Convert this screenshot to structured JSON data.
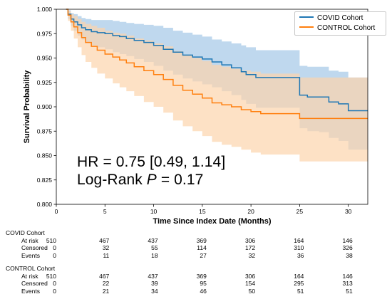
{
  "chart_data": {
    "type": "line",
    "title": "",
    "xlabel": "Time Since Index Date (Months)",
    "ylabel": "Survival Probability",
    "xlim": [
      0,
      32
    ],
    "ylim": [
      0.8,
      1.0
    ],
    "xticks": [
      0,
      5,
      10,
      15,
      20,
      25,
      30
    ],
    "xtick_labels": [
      "0",
      "5",
      "10",
      "15",
      "20",
      "25",
      "30"
    ],
    "yticks": [
      0.8,
      0.825,
      0.85,
      0.875,
      0.9,
      0.925,
      0.95,
      0.975,
      1.0
    ],
    "ytick_labels": [
      "0.800",
      "0.825",
      "0.850",
      "0.875",
      "0.900",
      "0.925",
      "0.950",
      "0.975",
      "1.000"
    ],
    "grid": false,
    "legend_position": "top-right",
    "series": [
      {
        "name": "COVID Cohort",
        "color": "#1f77b4",
        "band_color": "#a9cbe8",
        "x": [
          1.0,
          1.2,
          1.5,
          1.8,
          2.2,
          2.6,
          3.0,
          3.6,
          4.2,
          5.0,
          5.8,
          6.5,
          7.2,
          8.0,
          9.0,
          10.0,
          11.0,
          12.0,
          13.0,
          14.0,
          15.0,
          16.0,
          17.0,
          18.0,
          19.0,
          19.5,
          20.5,
          22.0,
          24.0,
          24.8,
          25.0,
          25.8,
          27.0,
          28.0,
          29.0,
          30.0,
          32.0
        ],
        "y": [
          1.0,
          0.995,
          0.99,
          0.987,
          0.984,
          0.981,
          0.979,
          0.977,
          0.976,
          0.975,
          0.973,
          0.972,
          0.97,
          0.968,
          0.966,
          0.963,
          0.959,
          0.956,
          0.953,
          0.951,
          0.949,
          0.946,
          0.943,
          0.94,
          0.936,
          0.933,
          0.93,
          0.93,
          0.93,
          0.93,
          0.912,
          0.91,
          0.91,
          0.905,
          0.903,
          0.896,
          0.896
        ],
        "ci_lower": [
          1.0,
          0.99,
          0.983,
          0.978,
          0.973,
          0.969,
          0.966,
          0.963,
          0.961,
          0.959,
          0.956,
          0.954,
          0.952,
          0.949,
          0.946,
          0.942,
          0.937,
          0.933,
          0.929,
          0.926,
          0.923,
          0.92,
          0.916,
          0.912,
          0.907,
          0.903,
          0.899,
          0.899,
          0.899,
          0.899,
          0.878,
          0.875,
          0.874,
          0.868,
          0.865,
          0.856,
          0.856
        ],
        "ci_upper": [
          1.0,
          0.999,
          0.996,
          0.995,
          0.993,
          0.991,
          0.99,
          0.989,
          0.989,
          0.989,
          0.988,
          0.987,
          0.986,
          0.985,
          0.984,
          0.983,
          0.981,
          0.978,
          0.976,
          0.974,
          0.972,
          0.969,
          0.967,
          0.965,
          0.963,
          0.961,
          0.958,
          0.958,
          0.958,
          0.958,
          0.942,
          0.941,
          0.941,
          0.937,
          0.936,
          0.93,
          0.93
        ]
      },
      {
        "name": "CONTROL Cohort",
        "color": "#ff7f0e",
        "band_color": "#fcd4ad",
        "x": [
          1.0,
          1.2,
          1.5,
          1.8,
          2.2,
          2.6,
          3.0,
          3.6,
          4.2,
          5.0,
          5.8,
          6.5,
          7.2,
          8.0,
          9.0,
          10.0,
          11.0,
          12.0,
          13.0,
          14.0,
          15.0,
          16.0,
          17.0,
          18.0,
          19.0,
          20.0,
          21.0,
          22.0,
          24.0,
          24.8,
          25.0,
          27.0,
          30.0,
          32.0
        ],
        "y": [
          1.0,
          0.994,
          0.987,
          0.982,
          0.976,
          0.971,
          0.966,
          0.962,
          0.958,
          0.954,
          0.951,
          0.948,
          0.945,
          0.941,
          0.937,
          0.933,
          0.928,
          0.922,
          0.917,
          0.913,
          0.909,
          0.904,
          0.902,
          0.9,
          0.897,
          0.895,
          0.893,
          0.893,
          0.893,
          0.893,
          0.888,
          0.888,
          0.888,
          0.888
        ],
        "ci_lower": [
          1.0,
          0.988,
          0.978,
          0.97,
          0.961,
          0.953,
          0.946,
          0.94,
          0.934,
          0.929,
          0.924,
          0.92,
          0.916,
          0.911,
          0.905,
          0.9,
          0.894,
          0.886,
          0.88,
          0.875,
          0.87,
          0.864,
          0.861,
          0.859,
          0.856,
          0.853,
          0.851,
          0.851,
          0.851,
          0.851,
          0.844,
          0.844,
          0.844,
          0.844
        ],
        "ci_upper": [
          1.0,
          0.998,
          0.995,
          0.993,
          0.99,
          0.987,
          0.985,
          0.983,
          0.981,
          0.978,
          0.976,
          0.975,
          0.973,
          0.97,
          0.968,
          0.965,
          0.962,
          0.957,
          0.953,
          0.95,
          0.947,
          0.943,
          0.941,
          0.939,
          0.937,
          0.936,
          0.934,
          0.934,
          0.934,
          0.934,
          0.93,
          0.93,
          0.93,
          0.93
        ]
      }
    ],
    "annotations": [
      "HR = 0.75 [0.49, 1.14]",
      "Log-Rank P = 0.17"
    ]
  },
  "annotation": {
    "hr_text": "HR = 0.75 [0.49, 1.14]",
    "lr_prefix": "Log-Rank ",
    "lr_p": "P",
    "lr_suffix": " = 0.17"
  },
  "risk_table": {
    "timepoints": [
      "0",
      "5",
      "10",
      "15",
      "20",
      "25",
      "30"
    ],
    "groups": [
      {
        "title": "COVID Cohort",
        "rows": [
          {
            "label": "At risk",
            "values": [
              "510",
              "467",
              "437",
              "369",
              "306",
              "164",
              "146"
            ]
          },
          {
            "label": "Censored",
            "values": [
              "0",
              "32",
              "55",
              "114",
              "172",
              "310",
              "326"
            ]
          },
          {
            "label": "Events",
            "values": [
              "0",
              "11",
              "18",
              "27",
              "32",
              "36",
              "38"
            ]
          }
        ]
      },
      {
        "title": "CONTROL Cohort",
        "rows": [
          {
            "label": "At risk",
            "values": [
              "510",
              "467",
              "437",
              "369",
              "306",
              "164",
              "146"
            ]
          },
          {
            "label": "Censored",
            "values": [
              "0",
              "22",
              "39",
              "95",
              "154",
              "295",
              "313"
            ]
          },
          {
            "label": "Events",
            "values": [
              "0",
              "21",
              "34",
              "46",
              "50",
              "51",
              "51"
            ]
          }
        ]
      }
    ]
  }
}
